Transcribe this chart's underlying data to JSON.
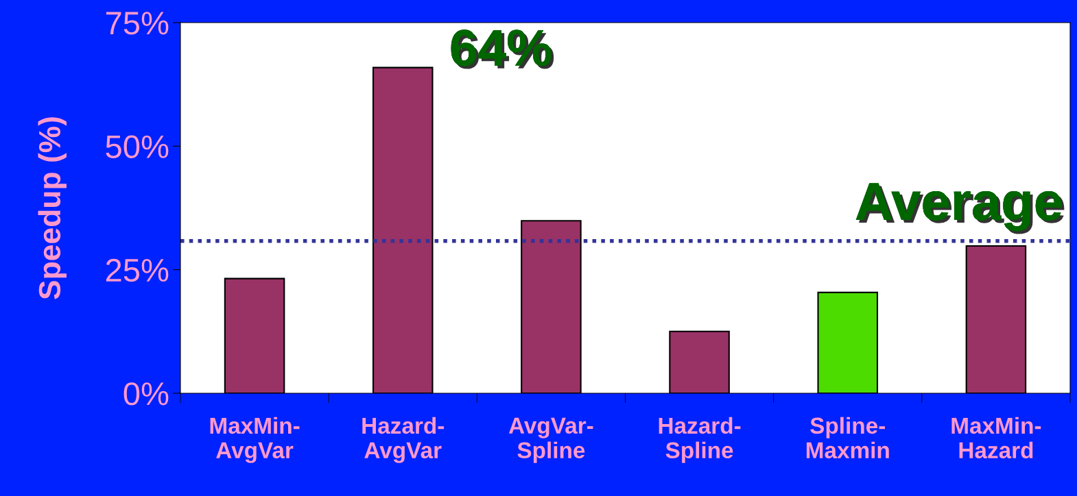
{
  "chart_data": {
    "type": "bar",
    "ylabel": "Speedup (%)",
    "categories": [
      "MaxMin-\nAvgVar",
      "Hazard-\nAvgVar",
      "AvgVar-\nSpline",
      "Hazard-\nSpline",
      "Spline-\nMaxmin",
      "MaxMin-\nHazard"
    ],
    "values": [
      23.2,
      65.9,
      34.9,
      12.5,
      20.4,
      29.8
    ],
    "colors": [
      "#993366",
      "#993366",
      "#993366",
      "#993366",
      "#4cdc00",
      "#993366"
    ],
    "ylim": [
      0,
      75
    ],
    "yticks": [
      {
        "value": 0,
        "label": "0%"
      },
      {
        "value": 25,
        "label": "25%"
      },
      {
        "value": 50,
        "label": "50%"
      },
      {
        "value": 75,
        "label": "75%"
      }
    ],
    "ref_lines": [
      {
        "axis": "y",
        "value": 30.8,
        "label": "Average",
        "color": "#333399",
        "line_style": "dotted"
      }
    ],
    "annotations": [
      "64%"
    ],
    "grid": false,
    "legend": false
  }
}
